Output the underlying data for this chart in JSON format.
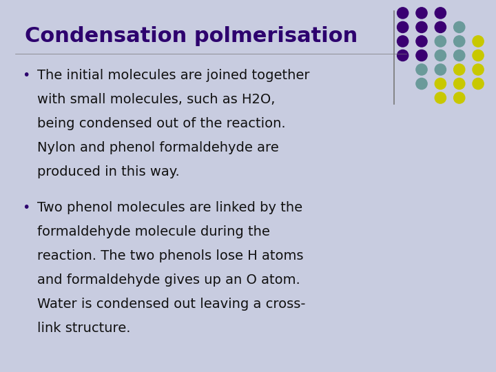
{
  "title": "Condensation polmerisation",
  "title_color": "#2d006e",
  "background_color": "#c8cce0",
  "text_color": "#111111",
  "bullet_color": "#2d006e",
  "bullet1_lines": [
    "The initial molecules are joined together",
    "with small molecules, such as H2O,",
    "being condensed out of the reaction.",
    "Nylon and phenol formaldehyde are",
    "produced in this way."
  ],
  "bullet2_lines": [
    "Two phenol molecules are linked by the",
    "formaldehyde molecule during the",
    "reaction. The two phenols lose H atoms",
    "and formaldehyde gives up an O atom.",
    "Water is condensed out leaving a cross-",
    "link structure."
  ],
  "divider_color": "#777777",
  "dot_color_map": [
    [
      "purple",
      "purple",
      "purple",
      null,
      null
    ],
    [
      "purple",
      "purple",
      "purple",
      "teal",
      null
    ],
    [
      "purple",
      "purple",
      "teal",
      "teal",
      "yellow"
    ],
    [
      "purple",
      "purple",
      "teal",
      "teal",
      "yellow"
    ],
    [
      null,
      "teal",
      "teal",
      "yellow",
      "yellow"
    ],
    [
      null,
      "teal",
      "yellow",
      "yellow",
      "yellow"
    ],
    [
      null,
      null,
      "yellow",
      "yellow",
      null
    ]
  ],
  "color_lookup": {
    "purple": "#3a0072",
    "teal": "#6a9a9a",
    "yellow": "#c8c800"
  }
}
